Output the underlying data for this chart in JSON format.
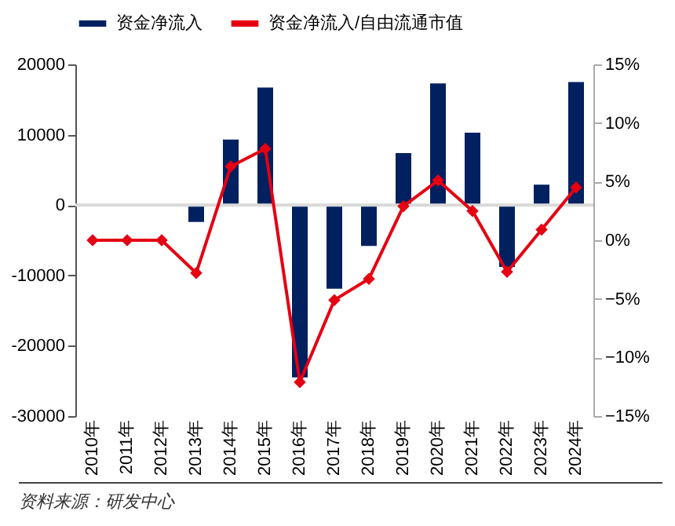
{
  "chart_data": {
    "type": "bar",
    "categories": [
      "2010年",
      "2011年",
      "2012年",
      "2013年",
      "2014年",
      "2015年",
      "2016年",
      "2017年",
      "2018年",
      "2019年",
      "2020年",
      "2021年",
      "2022年",
      "2023年",
      "2024年"
    ],
    "series": [
      {
        "name": "资金净流入",
        "color": "#002060",
        "values": [
          0,
          0,
          0,
          -2400,
          9300,
          16700,
          -24500,
          -11900,
          -5800,
          7400,
          17300,
          10300,
          -8800,
          2900,
          17500
        ]
      },
      {
        "name": "资金净流入/自由流通市值",
        "type": "line",
        "axis": "y2",
        "color": "#e50012",
        "values": [
          0,
          0,
          0,
          -2.8,
          6.3,
          7.8,
          -12.1,
          -5.1,
          -3.3,
          2.9,
          5.1,
          2.5,
          -2.7,
          0.9,
          4.5
        ]
      }
    ],
    "ylim": [
      -30000,
      20000
    ],
    "yticks": [
      -30000,
      -20000,
      -10000,
      0,
      10000,
      20000
    ],
    "y2lim": [
      -15,
      15
    ],
    "y2ticks": [
      {
        "value": -15,
        "label": "−15%"
      },
      {
        "value": -10,
        "label": "−10%"
      },
      {
        "value": -5,
        "label": "−5%"
      },
      {
        "value": 0,
        "label": "0%"
      },
      {
        "value": 5,
        "label": "5%"
      },
      {
        "value": 10,
        "label": "10%"
      },
      {
        "value": 15,
        "label": "15%"
      }
    ],
    "ref_lines": [
      {
        "axis": "y",
        "value": 0,
        "color": "#d9d9d9"
      }
    ],
    "marker": "diamond",
    "line_style": "solid",
    "grid": false,
    "legend": "top",
    "annotations": [
      "资料来源：研发中心"
    ]
  }
}
